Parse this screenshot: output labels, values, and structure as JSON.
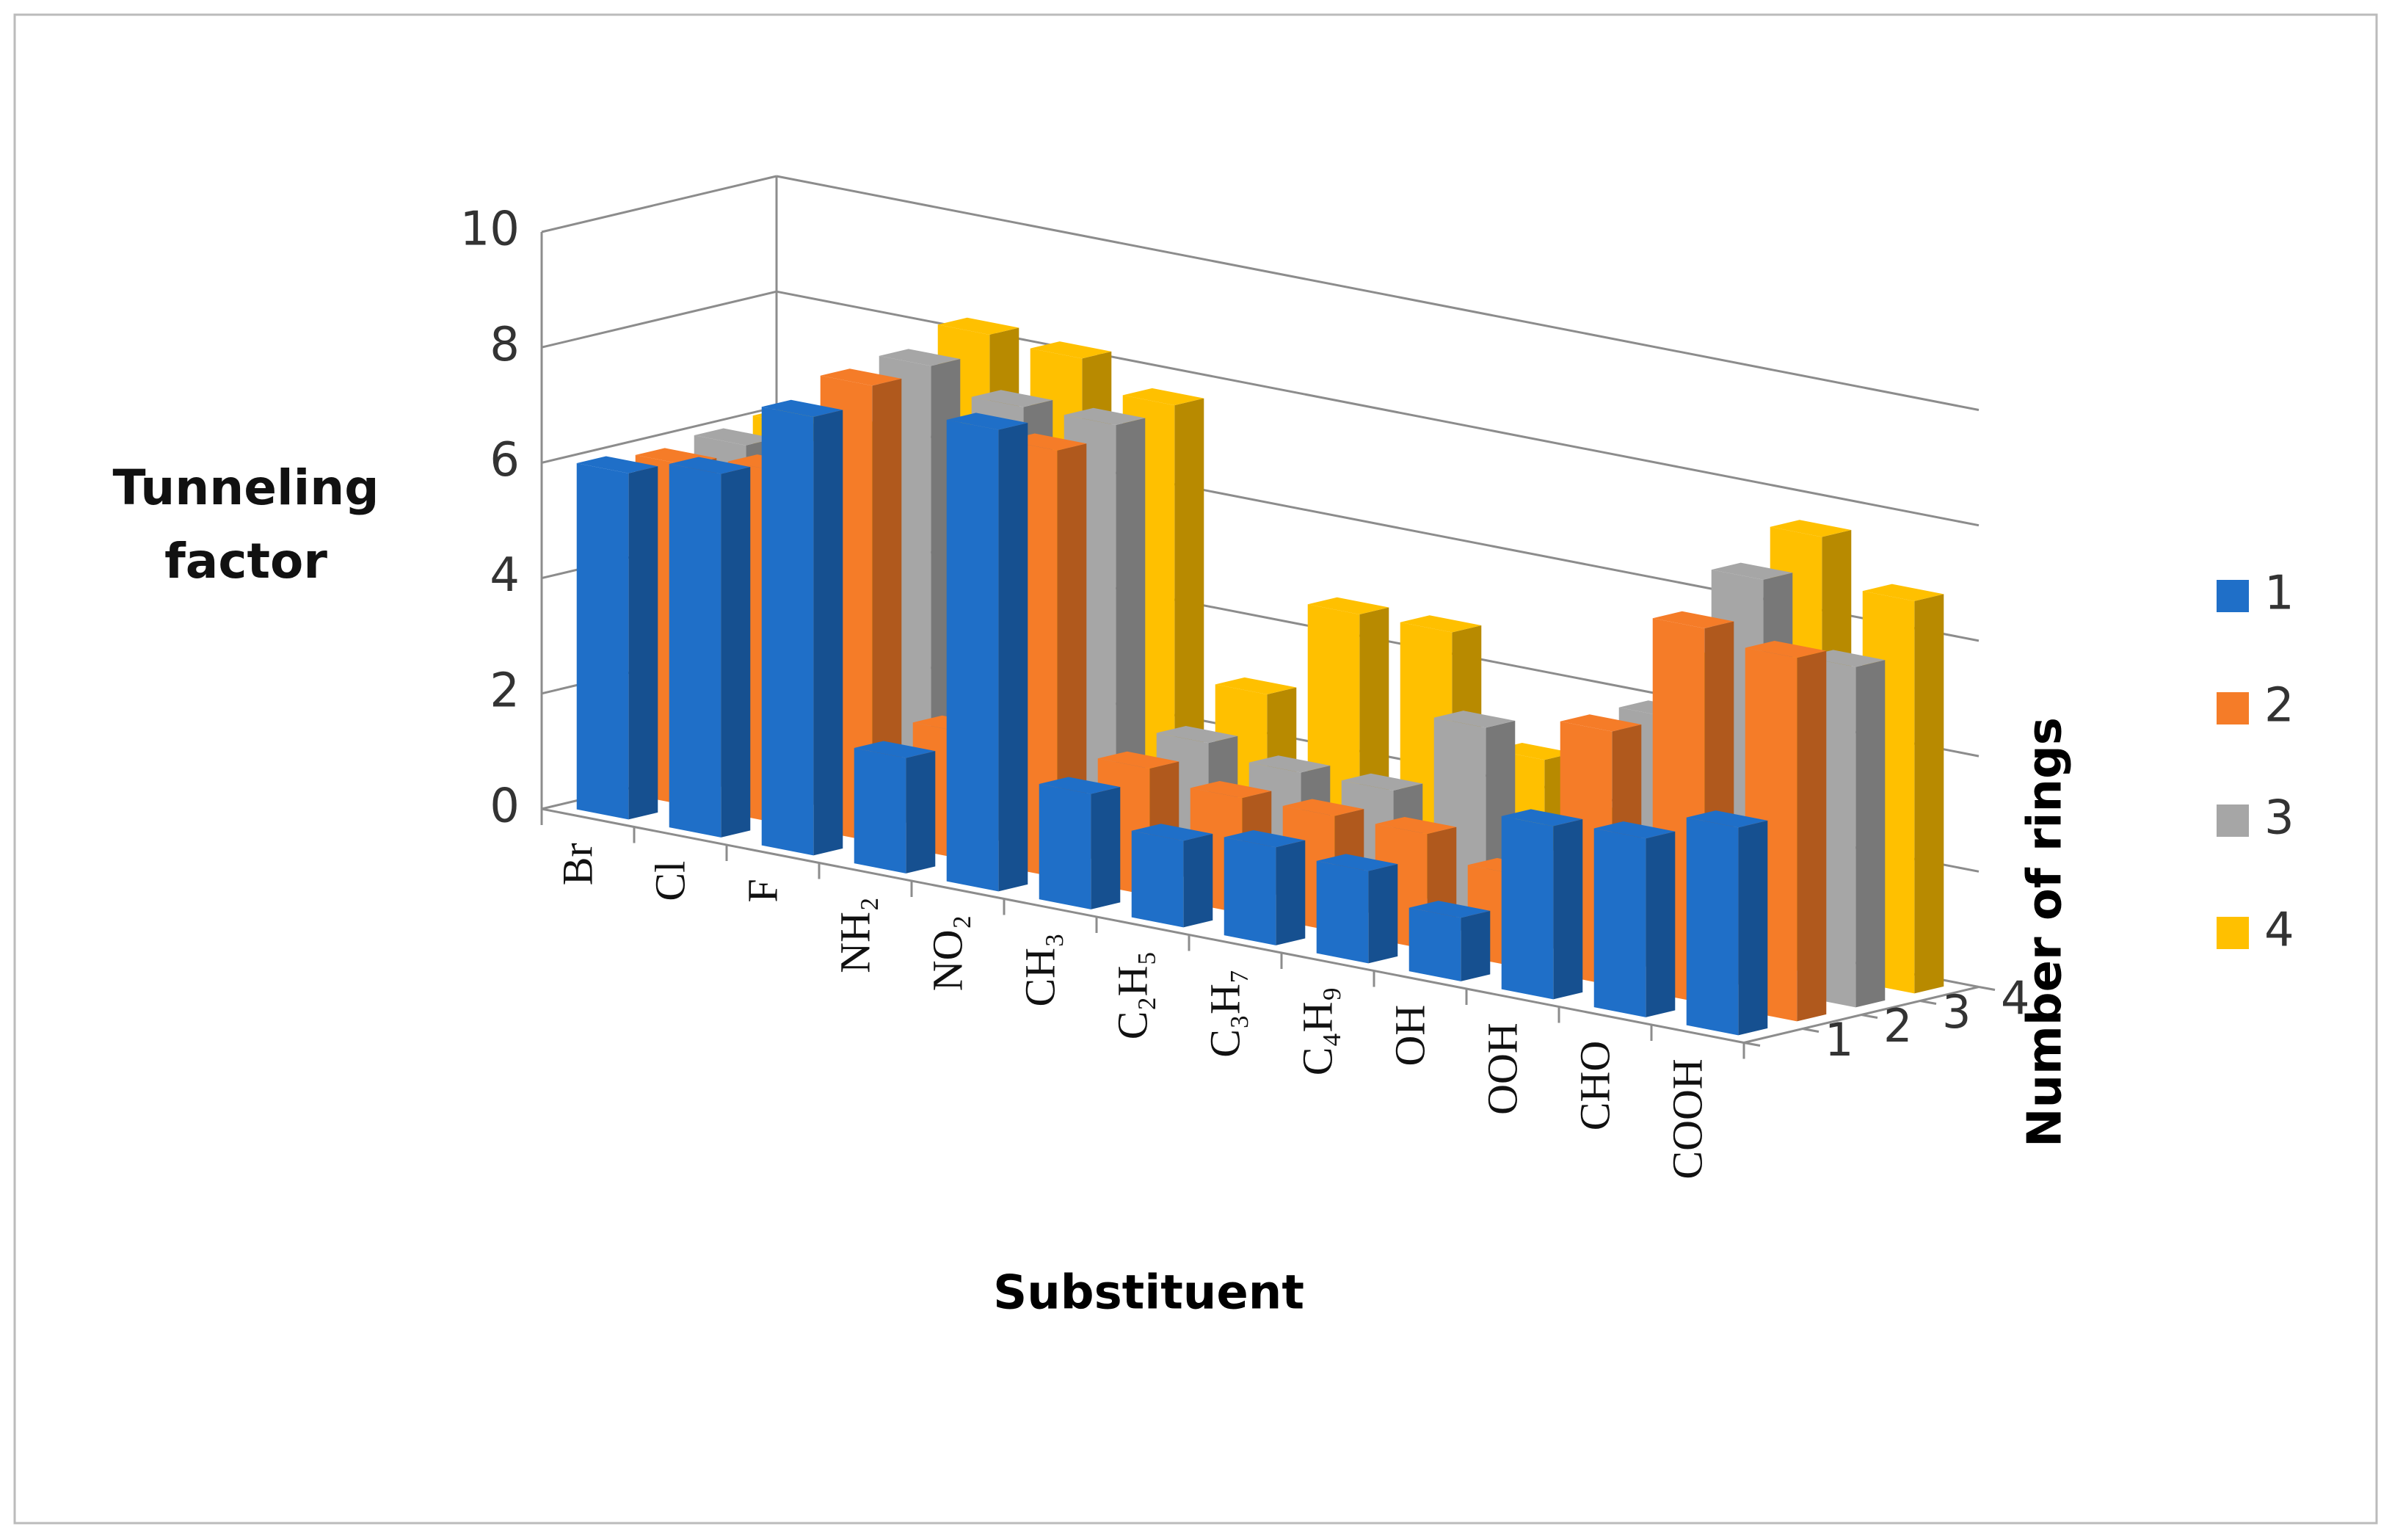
{
  "chart_data": {
    "type": "bar3d",
    "xlabel": "Substituent",
    "ylabel": "Tunneling factor",
    "zlabel": "Number of rings",
    "categories": [
      "Br",
      "Cl",
      "F",
      "NH₂",
      "NO₂",
      "CH₃",
      "C₂H₅",
      "C₃H₇",
      "C₄H₉",
      "OH",
      "OOH",
      "CHO",
      "COOH"
    ],
    "series": [
      {
        "name": "1",
        "color": "#1f6fc8",
        "values": [
          6,
          6.3,
          7.6,
          2,
          8,
          2,
          1.5,
          1.7,
          1.6,
          1.1,
          3,
          3.1,
          3.6
        ]
      },
      {
        "name": "2",
        "color": "#f57c28",
        "values": [
          5.9,
          6.1,
          7.9,
          2.2,
          7.4,
          2.2,
          2,
          2,
          2,
          1.6,
          4.4,
          6.5,
          6.3
        ]
      },
      {
        "name": "3",
        "color": "#a6a6a6",
        "values": [
          6,
          6.1,
          8,
          7.6,
          7.6,
          2.4,
          2.2,
          2.2,
          3.6,
          1.5,
          4.4,
          7.1,
          5.9
        ]
      },
      {
        "name": "4",
        "color": "#ffc000",
        "values": [
          6.1,
          6.2,
          8.3,
          8.2,
          7.7,
          3,
          4.7,
          4.7,
          2.8,
          2,
          5,
          7.6,
          6.8
        ]
      }
    ],
    "ylim": [
      0,
      10
    ],
    "yticks": [
      0,
      2,
      4,
      6,
      8,
      10
    ],
    "grid": true,
    "legend": "right"
  }
}
